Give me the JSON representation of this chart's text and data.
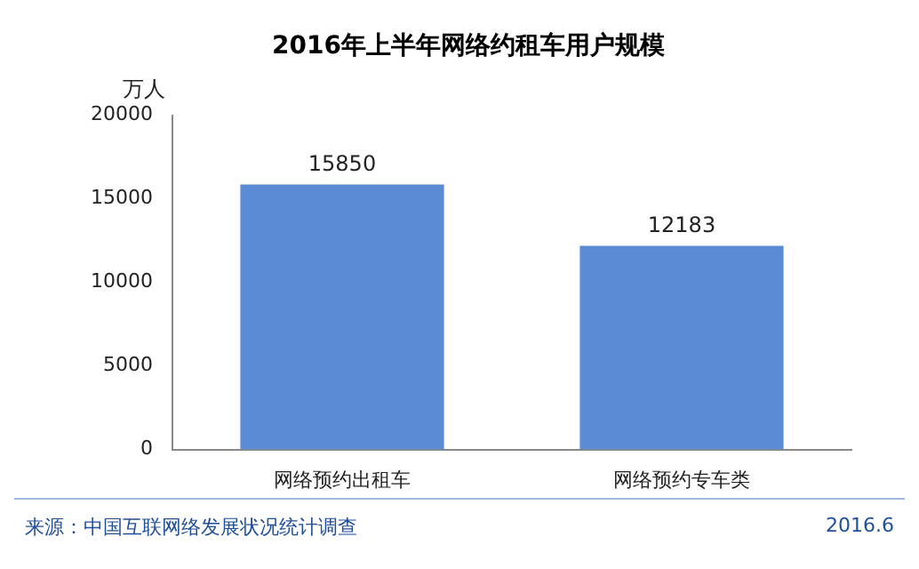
{
  "chart_data": {
    "type": "bar",
    "title": "2016年上半年网络约租车用户规模",
    "ylabel": "万人",
    "categories": [
      "网络预约出租车",
      "网络预约专车类"
    ],
    "values": [
      15850,
      12183
    ],
    "color": "#5b8bd4",
    "ylim": [
      0,
      20000
    ],
    "yticks": [
      0,
      5000,
      10000,
      15000,
      20000
    ],
    "grid": false,
    "data_labels": true,
    "annotations": [
      "来源：中国互联网络发展状况统计调查",
      "2016.6"
    ]
  }
}
